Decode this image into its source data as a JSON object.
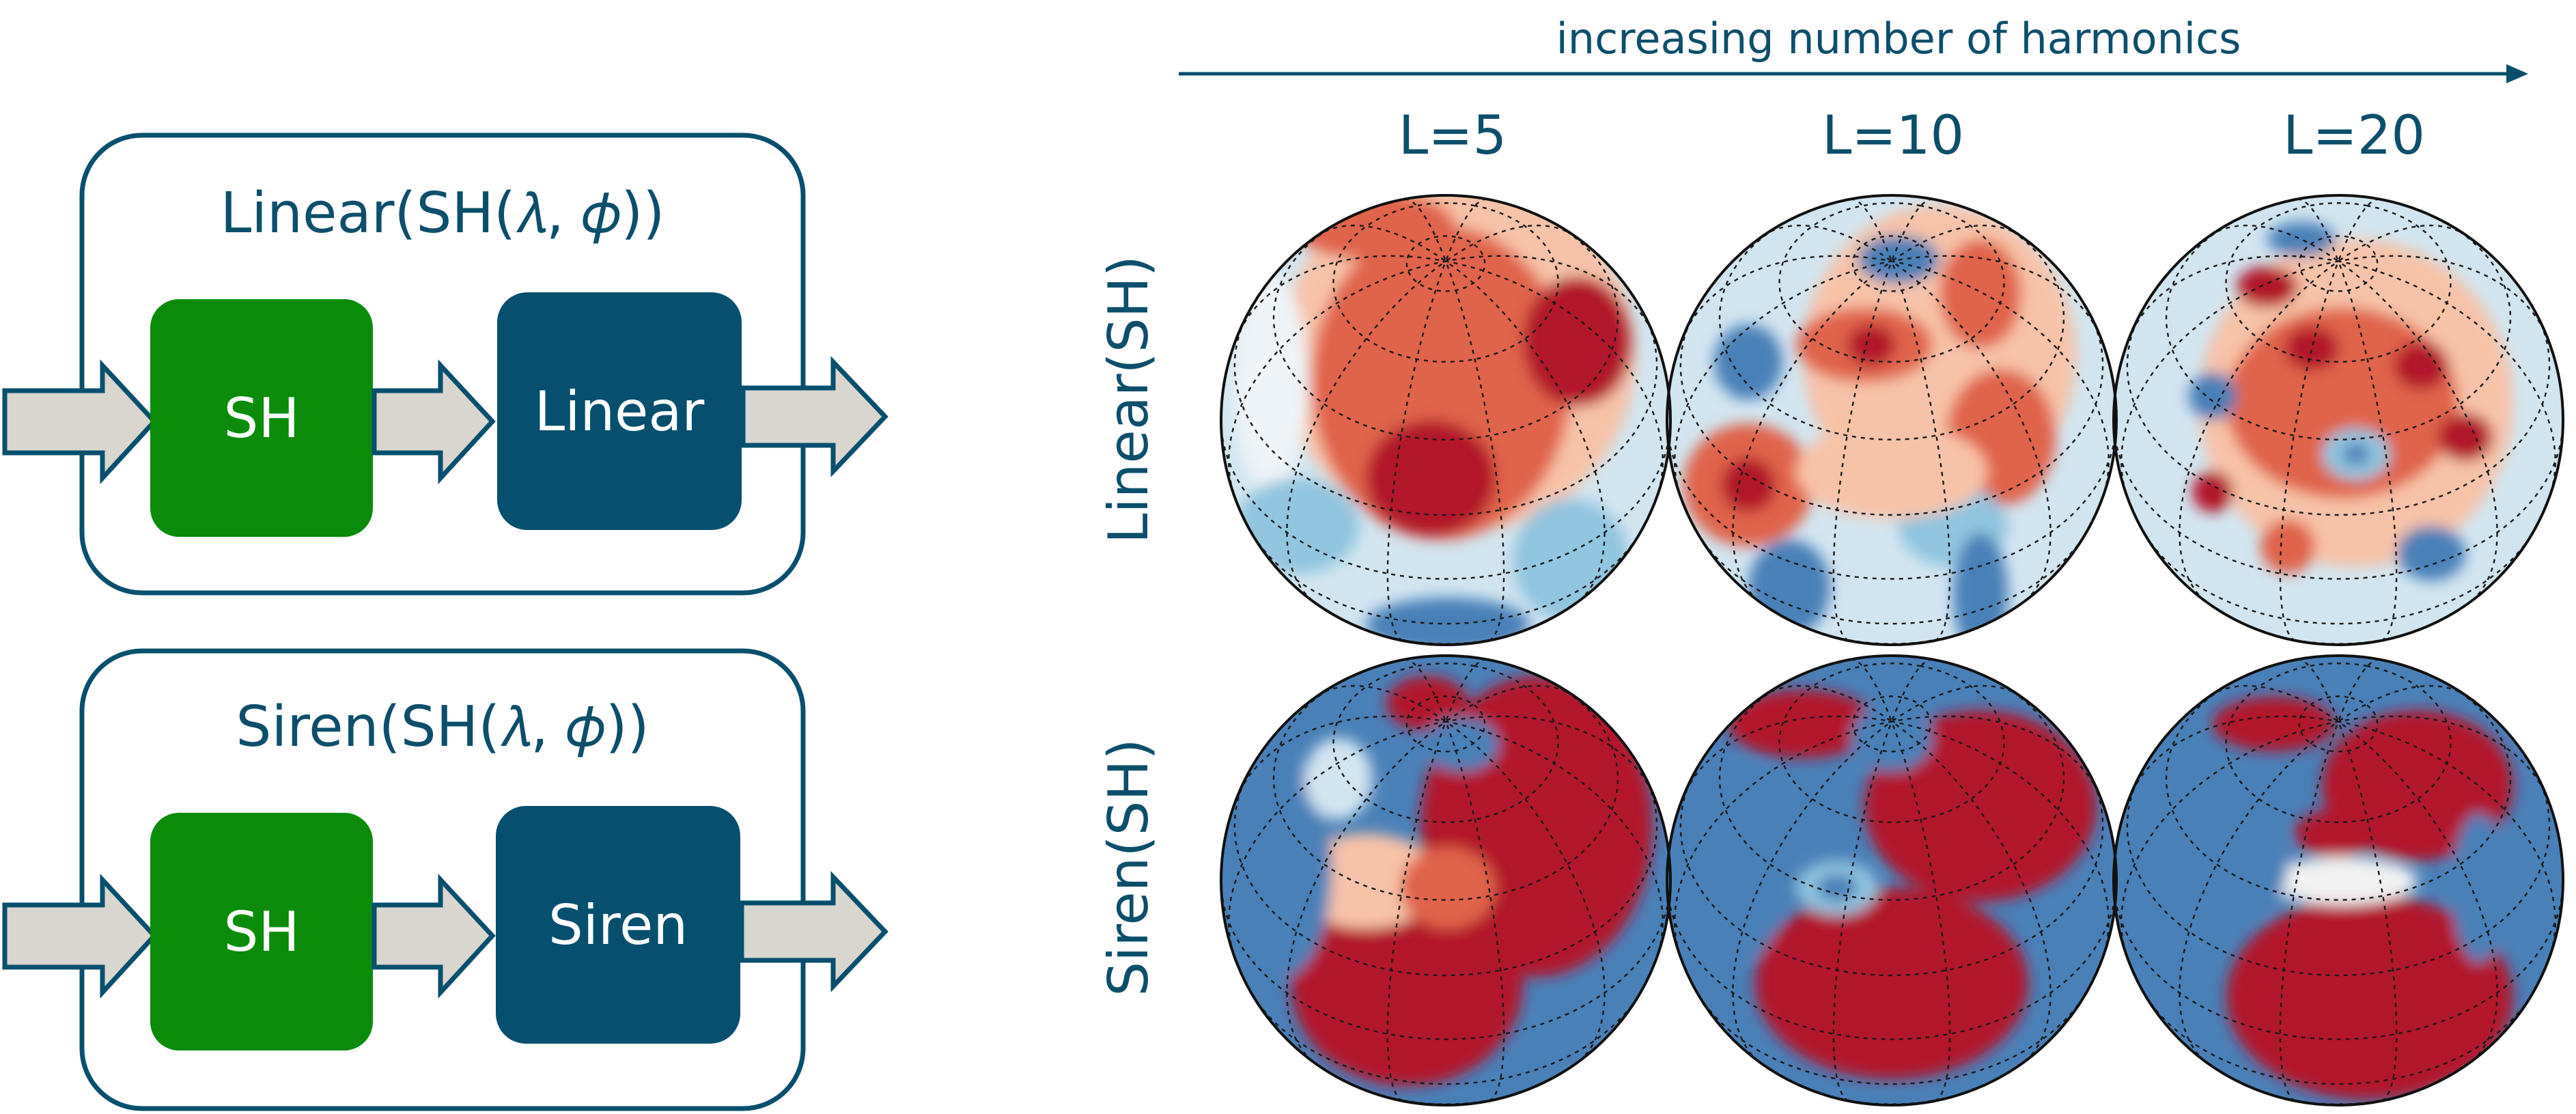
{
  "colors": {
    "navy": "#064f6f",
    "green": "#0a8c0a",
    "arrow_fill": "#d8d6cf",
    "warm_dark": "#b2182b",
    "warm_mid": "#e0644c",
    "warm_light": "#f7c3a8",
    "cool_light": "#d1e5f0",
    "cool_mid": "#92c5de",
    "cool_dark": "#4a80b8"
  },
  "diagram": {
    "top_panel": {
      "title": "Linear(SH(𝜆, 𝜙))",
      "block1": "SH",
      "block2": "Linear"
    },
    "bottom_panel": {
      "title": "Siren(SH(𝜆, 𝜙))",
      "block1": "SH",
      "block2": "Siren"
    }
  },
  "grid": {
    "axis_label": "increasing number of harmonics",
    "columns": [
      "L=5",
      "L=10",
      "L=20"
    ],
    "rows": [
      "Linear(SH)",
      "Siren(SH)"
    ]
  }
}
